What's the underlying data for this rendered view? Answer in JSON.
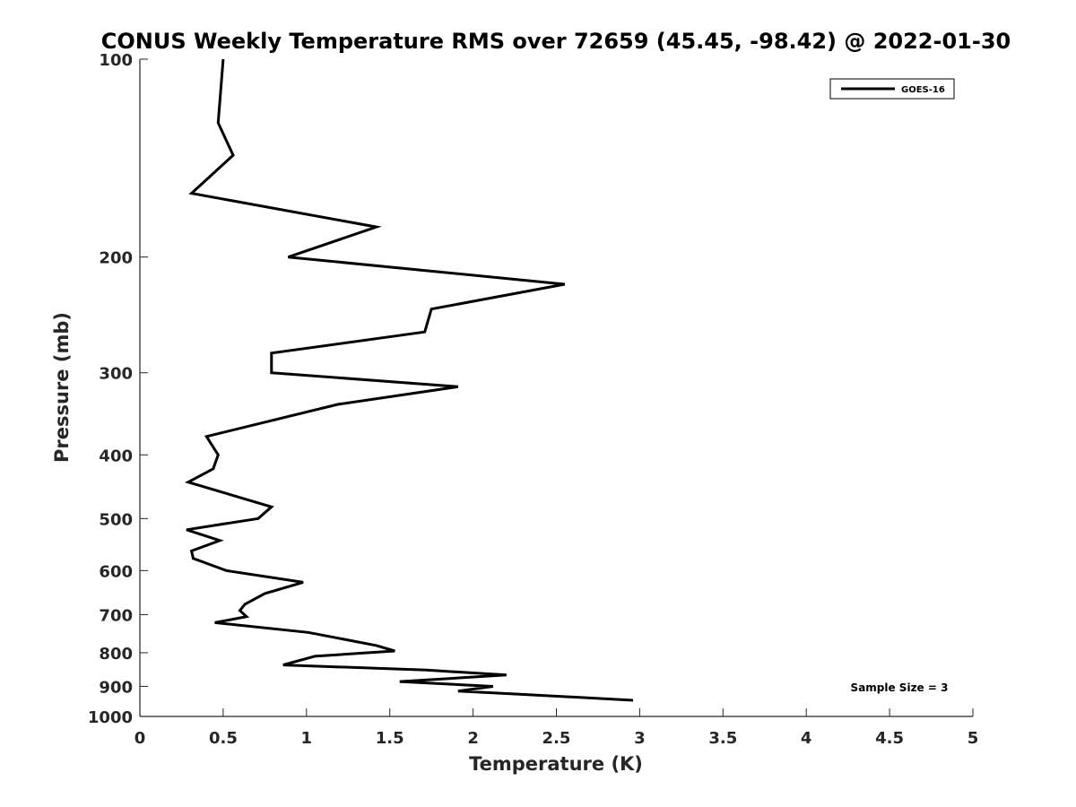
{
  "chart_data": {
    "type": "line",
    "title": "CONUS Weekly Temperature RMS over 72659 (45.45, -98.42) @ 2022-01-30",
    "xlabel": "Temperature (K)",
    "ylabel": "Pressure (mb)",
    "xlim": [
      0,
      5
    ],
    "ylim": [
      100,
      1000
    ],
    "yscale": "log",
    "y_reversed": true,
    "x_ticks": [
      "0",
      "0.5",
      "1",
      "1.5",
      "2",
      "2.5",
      "3",
      "3.5",
      "4",
      "4.5",
      "5"
    ],
    "y_ticks": [
      "100",
      "200",
      "300",
      "400",
      "500",
      "600",
      "700",
      "800",
      "900",
      "1000"
    ],
    "grid": false,
    "legend_position": "top-right",
    "annotation": "Sample Size = 3",
    "series": [
      {
        "name": "GOES-16",
        "color": "#000000",
        "points": [
          [
            0.5,
            100
          ],
          [
            0.47,
            125
          ],
          [
            0.56,
            140
          ],
          [
            0.31,
            160
          ],
          [
            1.42,
            180
          ],
          [
            0.89,
            200
          ],
          [
            2.55,
            220
          ],
          [
            1.75,
            240
          ],
          [
            1.71,
            260
          ],
          [
            0.79,
            280
          ],
          [
            0.79,
            300
          ],
          [
            1.91,
            315
          ],
          [
            1.19,
            335
          ],
          [
            0.4,
            375
          ],
          [
            0.47,
            400
          ],
          [
            0.44,
            420
          ],
          [
            0.29,
            440
          ],
          [
            0.79,
            480
          ],
          [
            0.71,
            500
          ],
          [
            0.28,
            520
          ],
          [
            0.48,
            540
          ],
          [
            0.31,
            560
          ],
          [
            0.32,
            575
          ],
          [
            0.52,
            600
          ],
          [
            0.98,
            625
          ],
          [
            0.75,
            650
          ],
          [
            0.63,
            675
          ],
          [
            0.6,
            690
          ],
          [
            0.64,
            705
          ],
          [
            0.45,
            720
          ],
          [
            1.01,
            745
          ],
          [
            1.42,
            780
          ],
          [
            1.53,
            795
          ],
          [
            1.05,
            810
          ],
          [
            0.86,
            835
          ],
          [
            1.72,
            850
          ],
          [
            2.2,
            865
          ],
          [
            1.56,
            885
          ],
          [
            2.12,
            900
          ],
          [
            1.91,
            915
          ],
          [
            2.28,
            925
          ],
          [
            2.96,
            945
          ]
        ]
      }
    ]
  }
}
